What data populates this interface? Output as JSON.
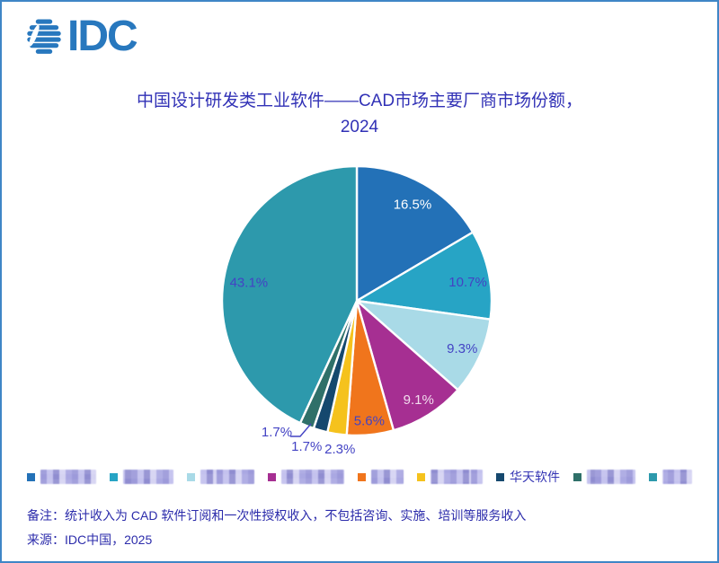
{
  "window": {
    "background": "#ffffff",
    "border_color": "#3f86c6"
  },
  "logo": {
    "text": "IDC",
    "color": "#2878be"
  },
  "title": {
    "line1": "中国设计研发类工业软件——CAD市场主要厂商市场份额，",
    "line2": "2024",
    "color": "#3131b6"
  },
  "chart_data": {
    "type": "pie",
    "title": "中国设计研发类工业软件——CAD市场主要厂商市场份额，2024",
    "start_angle_deg": 0,
    "direction": "clockwise",
    "units": "percent",
    "legend_position": "bottom",
    "slices": [
      {
        "label": "16.5%",
        "value": 16.5,
        "color": "#2371b7",
        "label_color": "#ffffff",
        "vendor_redacted": true
      },
      {
        "label": "10.7%",
        "value": 10.7,
        "color": "#27a4c5",
        "label_color": "#4343c4",
        "vendor_redacted": true
      },
      {
        "label": "9.3%",
        "value": 9.3,
        "color": "#a9dae7",
        "label_color": "#4343c4",
        "vendor_redacted": true
      },
      {
        "label": "9.1%",
        "value": 9.1,
        "color": "#a62f92",
        "label_color": "#f2dcee",
        "vendor_redacted": true
      },
      {
        "label": "5.6%",
        "value": 5.6,
        "color": "#f0751c",
        "label_color": "#4343c4",
        "vendor_redacted": true
      },
      {
        "label": "2.3%",
        "value": 2.3,
        "color": "#f5c21d",
        "label_color": "#4343c4",
        "vendor_redacted": true
      },
      {
        "label": "1.7%",
        "value": 1.7,
        "color": "#15486e",
        "label_color": "#4343c4",
        "vendor": "华天软件"
      },
      {
        "label": "1.7%",
        "value": 1.7,
        "color": "#2f7069",
        "label_color": "#4343c4",
        "vendor_redacted": true
      },
      {
        "label": "43.1%",
        "value": 43.1,
        "color": "#2d99ac",
        "label_color": "#4343c4",
        "vendor_redacted": true
      }
    ]
  },
  "legend": {
    "text_color": "#3434b4",
    "items": [
      {
        "color": "#2371b7",
        "label": "",
        "redacted": true,
        "blur_width": 62
      },
      {
        "color": "#27a4c5",
        "label": "",
        "redacted": true,
        "blur_width": 56
      },
      {
        "color": "#a9dae7",
        "label": "",
        "redacted": true,
        "blur_width": 60
      },
      {
        "color": "#a62f92",
        "label": "",
        "redacted": true,
        "blur_width": 70
      },
      {
        "color": "#f0751c",
        "label": "",
        "redacted": true,
        "blur_width": 36
      },
      {
        "color": "#f5c21d",
        "label": "",
        "redacted": true,
        "blur_width": 58
      },
      {
        "color": "#15486e",
        "label": "华天软件",
        "redacted": false,
        "blur_width": 0
      },
      {
        "color": "#2f7069",
        "label": "",
        "redacted": true,
        "blur_width": 54
      },
      {
        "color": "#2d99ac",
        "label": "",
        "redacted": true,
        "blur_width": 33
      }
    ]
  },
  "notes": {
    "remark": "备注：统计收入为 CAD 软件订阅和一次性授权收入，不包括咨询、实施、培训等服务收入",
    "source": "来源：IDC中国，2025",
    "color": "#2c2cab"
  }
}
